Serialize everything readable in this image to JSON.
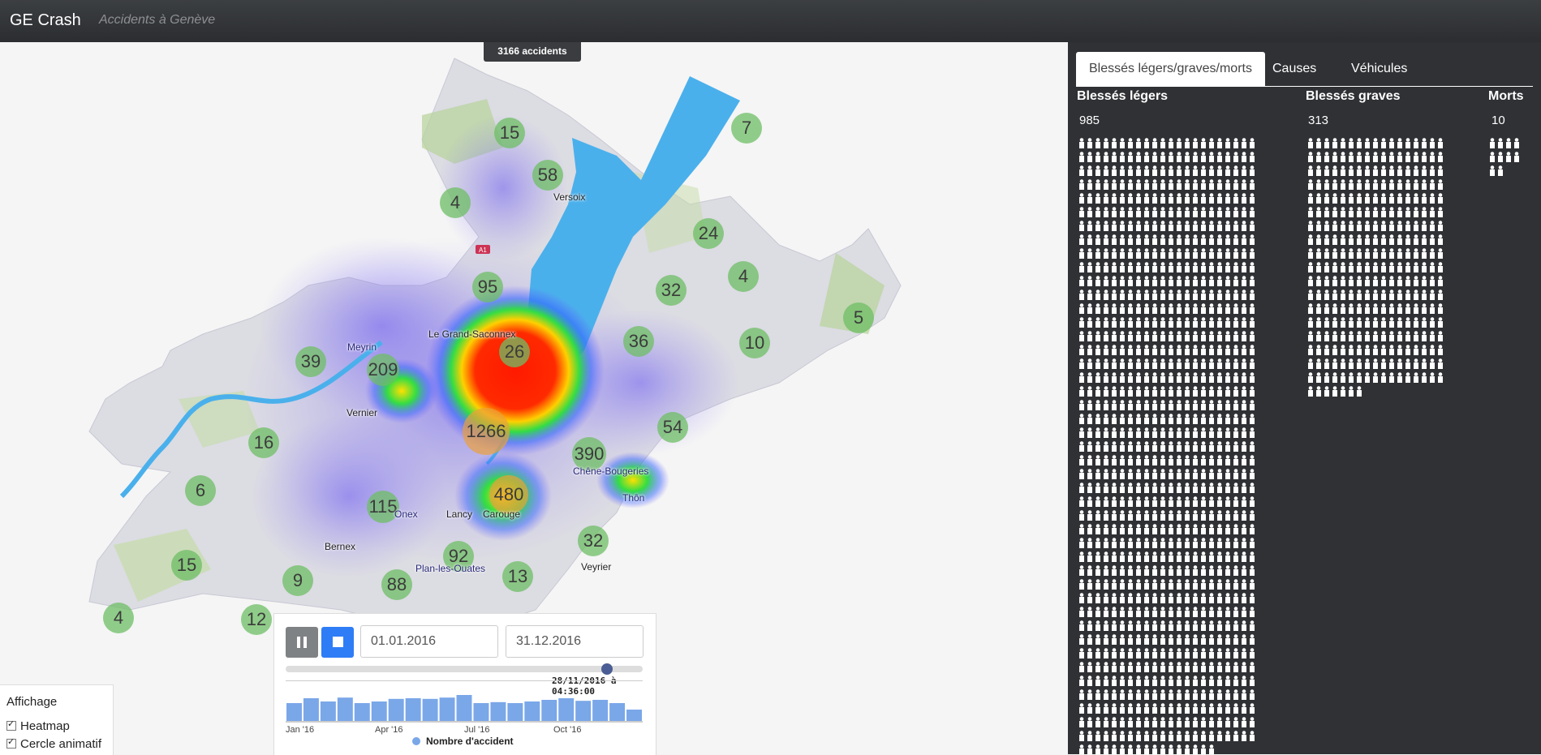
{
  "navbar": {
    "brand": "GE Crash",
    "subtitle": "Accidents à Genève"
  },
  "map": {
    "accident_count": "3166 accidents",
    "clusters": [
      {
        "label": "15"
      },
      {
        "label": "7"
      },
      {
        "label": "58"
      },
      {
        "label": "4"
      },
      {
        "label": "24"
      },
      {
        "label": "95"
      },
      {
        "label": "32"
      },
      {
        "label": "4"
      },
      {
        "label": "5"
      },
      {
        "label": "26"
      },
      {
        "label": "36"
      },
      {
        "label": "10"
      },
      {
        "label": "39"
      },
      {
        "label": "209"
      },
      {
        "label": "1266"
      },
      {
        "label": "54"
      },
      {
        "label": "16"
      },
      {
        "label": "390"
      },
      {
        "label": "6"
      },
      {
        "label": "115"
      },
      {
        "label": "480"
      },
      {
        "label": "32"
      },
      {
        "label": "92"
      },
      {
        "label": "15"
      },
      {
        "label": "9"
      },
      {
        "label": "88"
      },
      {
        "label": "13"
      },
      {
        "label": "4"
      },
      {
        "label": "12"
      }
    ],
    "places": [
      "Versoix",
      "Meyrin",
      "Le Grand-Saconnex",
      "Vernier",
      "Chêne-Bougeries",
      "Thôn",
      "Onex",
      "Lancy",
      "Carouge",
      "Bernex",
      "Plan-les-Ouates",
      "Veyrier"
    ],
    "highway_label": "A1"
  },
  "timeline": {
    "start_date": "01.01.2016",
    "end_date": "31.12.2016",
    "current_time": "28/11/2016 à 04:36:00",
    "progress": 0.9,
    "months": [
      "Jan '16",
      "Apr '16",
      "Jul '16",
      "Oct '16"
    ],
    "histogram": [
      0.55,
      0.7,
      0.6,
      0.72,
      0.55,
      0.6,
      0.68,
      0.7,
      0.68,
      0.72,
      0.8,
      0.55,
      0.58,
      0.55,
      0.6,
      0.65,
      0.7,
      0.62,
      0.65,
      0.55,
      0.35
    ],
    "legend": "Nombre d'accident",
    "colors": {
      "pause": "#7f8285",
      "stop": "#2f7df6",
      "bars": "#7aa7e8"
    }
  },
  "affichage": {
    "title": "Affichage",
    "options": [
      "Heatmap",
      "Cercle animatif"
    ]
  },
  "panel": {
    "tabs": [
      "Blessés légers/graves/morts",
      "Causes",
      "Véhicules"
    ],
    "columns": [
      {
        "title": "Blessés légers",
        "value": "985",
        "count": 985
      },
      {
        "title": "Blessés graves",
        "value": "313",
        "count": 313
      },
      {
        "title": "Morts",
        "value": "10",
        "count": 10
      }
    ]
  }
}
